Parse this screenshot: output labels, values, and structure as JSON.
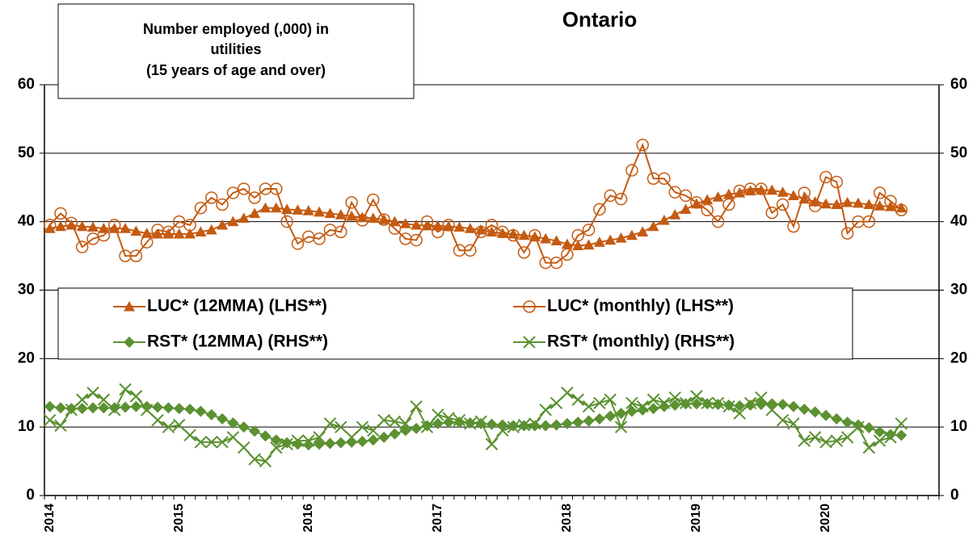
{
  "chart_data": {
    "type": "line",
    "title": "Ontario",
    "annotation": {
      "line1": "Number employed (,000) in",
      "line2": "utilities",
      "line3": "(15 years of age and over)",
      "highlight_color": "#4472c4"
    },
    "categories": [
      "2014",
      null,
      null,
      null,
      null,
      null,
      null,
      null,
      null,
      null,
      null,
      null,
      "2015",
      null,
      null,
      null,
      null,
      null,
      null,
      null,
      null,
      null,
      null,
      null,
      "2016",
      null,
      null,
      null,
      null,
      null,
      null,
      null,
      null,
      null,
      null,
      null,
      "2017",
      null,
      null,
      null,
      null,
      null,
      null,
      null,
      null,
      null,
      null,
      null,
      "2018",
      null,
      null,
      null,
      null,
      null,
      null,
      null,
      null,
      null,
      null,
      null,
      "2019",
      null,
      null,
      null,
      null,
      null,
      null,
      null,
      null,
      null,
      null,
      null,
      "2020",
      null,
      null,
      null,
      null,
      null,
      null,
      null
    ],
    "ylim": [
      0,
      60
    ],
    "yticks": [
      0,
      10,
      20,
      30,
      40,
      50,
      60
    ],
    "y2lim": [
      0,
      60
    ],
    "y2ticks": [
      0,
      10,
      20,
      30,
      40,
      50,
      60
    ],
    "grid": true,
    "series": [
      {
        "name": "LUC* (12MMA) (LHS**)",
        "color": "#c55a11",
        "marker": "triangle",
        "axis": "y",
        "values": [
          39,
          39.3,
          39.5,
          39.3,
          39.2,
          39,
          39,
          39,
          38.6,
          38.3,
          38.2,
          38.2,
          38.2,
          38.2,
          38.5,
          38.8,
          39.5,
          40,
          40.5,
          41.2,
          42,
          42,
          41.8,
          41.7,
          41.6,
          41.4,
          41.2,
          41,
          40.8,
          40.6,
          40.5,
          40.3,
          40,
          39.7,
          39.5,
          39.4,
          39.4,
          39.3,
          39.2,
          39,
          38.8,
          38.5,
          38.3,
          38.2,
          38,
          37.8,
          37.5,
          37.2,
          36.7,
          36.5,
          36.6,
          37,
          37.3,
          37.6,
          38,
          38.5,
          39.3,
          40.2,
          41,
          41.8,
          42.6,
          43.2,
          43.6,
          44,
          44.2,
          44.5,
          44.6,
          44.6,
          44.3,
          43.8,
          43.3,
          42.9,
          42.6,
          42.5,
          42.8,
          42.7,
          42.5,
          42.3,
          42.2,
          42
        ]
      },
      {
        "name": "LUC* (monthly) (LHS**)",
        "color": "#c55a11",
        "marker": "circle-open",
        "axis": "y",
        "values": [
          39.5,
          41.2,
          39.8,
          36.3,
          37.5,
          38,
          39.5,
          35,
          35,
          37,
          38.8,
          38.5,
          40,
          39.5,
          42,
          43.5,
          42.5,
          44.2,
          44.8,
          43.5,
          44.8,
          44.8,
          40,
          36.8,
          37.8,
          37.5,
          38.8,
          38.5,
          42.8,
          40.2,
          43.2,
          40.3,
          39,
          37.5,
          37.3,
          40,
          38.5,
          39.5,
          35.8,
          35.8,
          38.5,
          39.5,
          38.5,
          38,
          35.5,
          38,
          34,
          34,
          35.2,
          38,
          38.8,
          41.8,
          43.8,
          43.3,
          47.5,
          51.2,
          46.3,
          46.3,
          44.3,
          43.8,
          42.8,
          41.7,
          40,
          42.5,
          44.5,
          44.8,
          44.8,
          41.3,
          42.5,
          39.3,
          44.2,
          42.3,
          46.5,
          45.8,
          38.3,
          40,
          40,
          44.2,
          43,
          41.7
        ]
      },
      {
        "name": "RST* (12MMA) (RHS**)",
        "color": "#5b9130",
        "marker": "diamond",
        "axis": "y2",
        "values": [
          13,
          12.8,
          12.7,
          12.7,
          12.8,
          12.8,
          12.8,
          12.9,
          13,
          13,
          12.9,
          12.8,
          12.7,
          12.6,
          12.3,
          11.8,
          11.2,
          10.6,
          10,
          9.4,
          8.7,
          8.1,
          7.7,
          7.5,
          7.4,
          7.5,
          7.6,
          7.7,
          7.8,
          7.9,
          8.1,
          8.5,
          9,
          9.5,
          9.8,
          10.2,
          10.5,
          10.7,
          10.7,
          10.6,
          10.5,
          10.4,
          10.3,
          10.2,
          10.2,
          10.2,
          10.2,
          10.3,
          10.5,
          10.7,
          10.9,
          11.2,
          11.6,
          12,
          12.3,
          12.5,
          12.7,
          13,
          13.2,
          13.4,
          13.4,
          13.4,
          13.3,
          13.2,
          13.1,
          13.2,
          13.3,
          13.4,
          13.3,
          13,
          12.6,
          12.2,
          11.7,
          11.2,
          10.7,
          10.3,
          9.9,
          9.3,
          8.9,
          8.8
        ]
      },
      {
        "name": "RST* (monthly) (RHS**)",
        "color": "#5b9130",
        "marker": "x",
        "axis": "y2",
        "values": [
          11,
          10.2,
          12.5,
          14,
          15,
          14,
          12.5,
          15.5,
          14.5,
          12.5,
          11,
          10,
          10.3,
          8.8,
          7.8,
          7.8,
          7.8,
          8.5,
          7,
          5.3,
          5,
          7,
          7.5,
          8,
          8,
          8.5,
          10.5,
          10,
          8.5,
          10,
          9.5,
          11,
          10.8,
          10.5,
          13,
          10,
          11.8,
          11.3,
          11,
          10.5,
          10.8,
          7.5,
          9.5,
          10,
          10.3,
          10.5,
          12.5,
          13.5,
          15,
          14,
          13,
          13.5,
          14,
          10,
          13.5,
          13,
          14,
          13.5,
          14.3,
          13.5,
          14.5,
          13.5,
          13.5,
          13,
          12,
          13.5,
          14.3,
          12.5,
          11,
          10.5,
          8,
          8.5,
          7.8,
          8,
          8.5,
          10,
          7,
          8,
          8.5,
          10.5
        ]
      }
    ]
  }
}
